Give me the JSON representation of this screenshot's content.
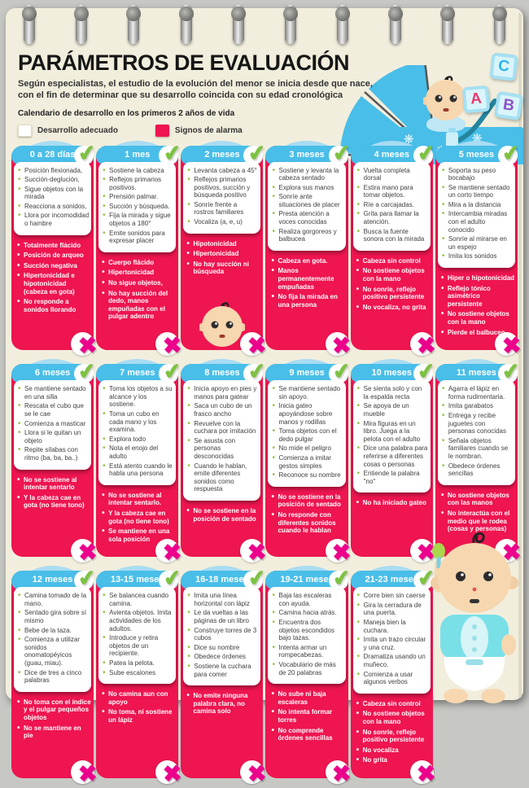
{
  "colors": {
    "page-cream": "#f2eedd",
    "bg-gray": "#c7c8c4",
    "header-blue": "#49bee8",
    "arc-blue": "#a9dcf2",
    "card-red": "#ee1550",
    "bullet-green": "#8dc63f",
    "check-green": "#7dc242",
    "x-magenta": "#ec008c",
    "title-black": "#161616",
    "body-text": "#3f3f3f"
  },
  "header": {
    "title": "PARÁMETROS DE EVALUACIÓN",
    "subtitle": "Según especialistas, el estudio de la evolución del menor se inicia desde que nace, con el fin de determinar que su desarrollo coincida con su edad cronológica",
    "calendar_label": "Calendario de desarrollo en los primeros 2 años de vida"
  },
  "legend": {
    "adequate_label": "Desarrollo adecuado",
    "alarm_label": "Signos de alarma"
  },
  "icons": {
    "check": "✔",
    "cross": "✖",
    "snowflake": "❋",
    "bullet": "•"
  },
  "pram": {
    "blocks": [
      "C",
      "A",
      "B"
    ]
  },
  "cards": [
    {
      "age": "0 a 28 días",
      "adequate": [
        "Posición flexionada,",
        "Succión-deglución,",
        "Sigue objetos con la mirada",
        "Reacciona a sonidos,",
        "Llora por incomodidad o hambre"
      ],
      "alarm": [
        "Totalmente flácido",
        "Posición de arqueo",
        "Succión negativa",
        "Hipertonicidad e hipotonicidad (cabeza en gota)",
        "No responde a sonidos llorando"
      ]
    },
    {
      "age": "1 mes",
      "adequate": [
        "Sostiene la cabeza",
        "Reflejos primarios positivos.",
        "Prensión palmar.",
        "Succión y búsqueda.",
        "Fija la mirada y sigue objetos a 180°",
        "Emite sonidos para expresar placer"
      ],
      "alarm": [
        "Cuerpo flácido",
        "Hipertonicidad",
        "No sigue objetos,",
        "No hay succión del dedo, manos empuñadas con el pulgar adentro"
      ]
    },
    {
      "age": "2 meses",
      "decor": "baby-face",
      "adequate": [
        "Levanta cabeza a 45°",
        "Reflejos primarios positivos, succión y búsqueda positivo",
        "Sonríe frente a rostros familiares",
        "Vocaliza (a, e, u)"
      ],
      "alarm": [
        "Hipotonicidad",
        "Hipertonicidad",
        "No hay succión ni búsqueda"
      ]
    },
    {
      "age": "3 meses",
      "adequate": [
        "Sostiene y levanta la cabeza sentado",
        "Explora sus manos",
        "Sonríe ante situaciones de placer",
        "Presta atención a voces conocidas",
        "Realiza gorgoreos y balbucea"
      ],
      "alarm": [
        "Cabeza en gota.",
        "Manos permanentemente empuñadas",
        "No fija la mirada en una persona"
      ]
    },
    {
      "age": "4 meses",
      "adequate": [
        "Vuelta completa dorsal",
        "Estira mano para tomar objetos.",
        "Ríe a carcajadas.",
        "Grita para llamar la atención.",
        "Busca la fuente sonora con la mirada"
      ],
      "alarm": [
        "Cabeza sin control",
        "No sostiene objetos con la mano",
        "No sonríe, reflejo positivo persistente",
        "No vocaliza, no grita"
      ]
    },
    {
      "age": "5 meses",
      "adequate": [
        "Soporta su peso bocabajo",
        "Se mantiene sentado un corto tiempo",
        "Mira a la distancia",
        "Intercambia miradas con el adulto conocido",
        "Sonríe al mirarse en un espejo",
        "Imita los sonidos"
      ],
      "alarm": [
        "Hiper o hipotonicidad",
        "Reflejo tónico asimétrico persistente",
        "No sostiene objetos con la mano",
        "Pierde el balbuceo"
      ]
    },
    {
      "age": "6 meses",
      "adequate": [
        "Se mantiene sentado en una silla",
        "Rescata el cubo que se le cae",
        "Comienza a masticar",
        "Llora si le quitan un objeto",
        "Repite sílabas con ritmo (ba, ba, ba..)"
      ],
      "alarm": [
        "No se sostiene al intentar sentarlo",
        "Y la cabeza cae en gota (no tiene tono)"
      ]
    },
    {
      "age": "7 meses",
      "adequate": [
        "Toma los objetos a su alcance y los sostiene.",
        "Toma un cubo en cada mano y los examina.",
        "Explora todo",
        "Nota el enojo del adulto",
        "Está atento cuando le habla una persona"
      ],
      "alarm": [
        "No se sostiene al intentar sentarlo.",
        "Y la cabeza cae en gota (no tiene tono)",
        "Se mantiene en una sola posición"
      ]
    },
    {
      "age": "8 meses",
      "adequate": [
        "Inicia apoyo en pies y manos para gatear",
        "Saca un cubo de un frasco ancho",
        "Revuelve con la cuchara por imitación",
        "Se asusta con personas desconocidas",
        "Cuando le hablan, emite diferentes sonidos como respuesta"
      ],
      "alarm": [
        "No se sostiene en la posición de sentado"
      ]
    },
    {
      "age": "9 meses",
      "adequate": [
        "Se mantiene sentado sin apoyo.",
        "Inicia gateo apoyándose sobre manos y rodillas",
        "Toma objetos con el dedo pulgar",
        "No mide el peligro",
        "Comienza a imitar gestos simples",
        "Reconoce su nombre"
      ],
      "alarm": [
        "No se sostiene en la posición de sentado",
        "No responde con diferentes sonidos cuando le hablan"
      ]
    },
    {
      "age": "10 meses",
      "adequate": [
        "Se sienta solo y con la espalda recta",
        "Se apoya de un mueble",
        "Mira figuras en un libro. Juega a la pelota con el adulto",
        "Dice una palabra para referirse a diferentes cosas o personas",
        "Entiende la palabra \"no\""
      ],
      "alarm": [
        "No ha iniciado gateo"
      ]
    },
    {
      "age": "11 meses",
      "adequate": [
        "Agarra el lápiz en forma rudimentaria.",
        "Imita garabatos",
        "Entrega y recibe juguetes con personas conocidas",
        "Señala objetos familiares cuando se le nombran.",
        "Obedece órdenes sencillas"
      ],
      "alarm": [
        "No sostiene objetos con las manos",
        "No interactúa con el medio que le rodea (cosas y personas)"
      ]
    },
    {
      "age": "12 meses",
      "adequate": [
        "Camina tomado de la mano.",
        "Sentado gira sobre sí mismo",
        "Bebe de la taza.",
        "Comienza a utilizar sonidos onomatopéyicos (guau, miau).",
        "Dice de tres a cinco palabras"
      ],
      "alarm": [
        "No toma con el índice y el pulgar pequeños objetos",
        "No se mantiene en pie"
      ]
    },
    {
      "age": "13-15 meses",
      "adequate": [
        "Se balancea cuando camina.",
        "Avienta objetos. Imita actividades de los adultos.",
        "Introduce y retira objetos de un recipiente.",
        "Patea la pelota.",
        "Sube escalones"
      ],
      "alarm": [
        "No camina aun con apoyo",
        "No toma, ni sostiene un lápiz"
      ]
    },
    {
      "age": "16-18 meses",
      "adequate": [
        "Imita una línea horizontal con lápiz",
        "Le da vueltas a las páginas de un libro",
        "Construye torres de 3 cubos",
        "Dice su nombre",
        "Obedece órdenes",
        "Sostiene la cuchara para comer"
      ],
      "alarm": [
        "No emite ninguna palabra clara, no camina solo"
      ]
    },
    {
      "age": "19-21 meses",
      "adequate": [
        "Baja las escaleras con ayuda.",
        "Camina hacia atrás.",
        "Encuentra dos objetos escondidos bajo tazas.",
        "Intenta armar un rompecabezas.",
        "Vocabulario de más de 20 palabras"
      ],
      "alarm": [
        "No sube ni baja escaleras",
        "No intenta formar torres",
        "No comprende órdenes sencillas"
      ]
    },
    {
      "age": "21-23 meses",
      "adequate": [
        "Corre bien sin caerse",
        "Gira la cerradura de una puerta.",
        "Maneja bien la cuchara.",
        "Imita un trazo circular y una cruz.",
        "Dramatiza usando un muñeco.",
        "Comienza a usar algunos verbos"
      ],
      "alarm": [
        "Cabeza sin control",
        "No sostiene objetos con la mano",
        "No sonríe, reflejo positivo persistente",
        "No vocaliza",
        "No grita"
      ]
    }
  ]
}
